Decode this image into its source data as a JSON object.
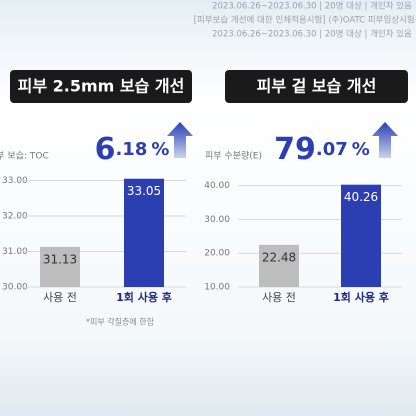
{
  "notes": [
    "2023.06.26~2023.06.30 | 20명 대상 | 개인차 있음",
    "[피부보습 개선에 대한 인체적용시험] (주)OATC 피부임상시험센터",
    "2023.06.26~2023.06.30 | 20명 대상 | 개인차 있음"
  ],
  "chart_data": [
    {
      "type": "bar",
      "title": "피부 2.5mm 보습 개선",
      "y_label": "피부 보습: TOC",
      "categories": [
        "사용 전",
        "1회 사용 후"
      ],
      "values": [
        31.13,
        33.05
      ],
      "colors": [
        "#bdbdbd",
        "#2b3fb3"
      ],
      "ylim": [
        30,
        34
      ],
      "yticks": [
        {
          "value": 30,
          "label": "30.00"
        },
        {
          "value": 31,
          "label": "31.00"
        },
        {
          "value": 32,
          "label": "32.00"
        },
        {
          "value": 33,
          "label": "33.00"
        }
      ],
      "grid": true,
      "change": {
        "major": "6",
        "minor": ".18",
        "unit": "%"
      },
      "footnote": "*피부 각질층에 한함"
    },
    {
      "type": "bar",
      "title": "피부 겉 보습 개선",
      "y_label": "피부 수분량(E)",
      "categories": [
        "사용 전",
        "1회 사용 후"
      ],
      "values": [
        22.48,
        40.26
      ],
      "colors": [
        "#bdbdbd",
        "#2b3fb3"
      ],
      "ylim": [
        10,
        52
      ],
      "yticks": [
        {
          "value": 10,
          "label": "10.00"
        },
        {
          "value": 20,
          "label": "20.00"
        },
        {
          "value": 30,
          "label": "30.00"
        },
        {
          "value": 40,
          "label": "40.00"
        }
      ],
      "grid": true,
      "change": {
        "major": "79",
        "minor": ".07",
        "unit": "%"
      }
    }
  ]
}
